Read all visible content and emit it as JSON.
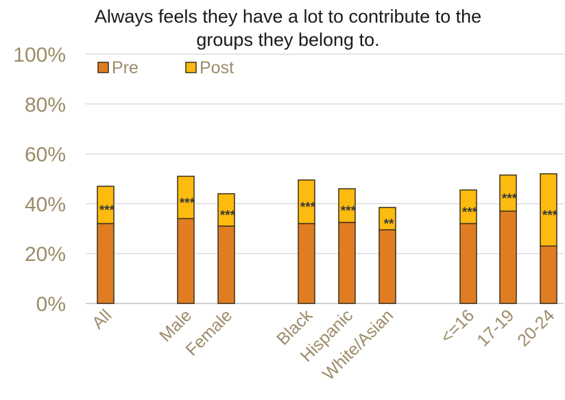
{
  "chart_data": {
    "type": "bar",
    "stacked": true,
    "title": "Always feels they have a lot to contribute to the groups they belong to.",
    "title_lines": [
      "Always feels they have a lot to contribute to the",
      "groups they belong to."
    ],
    "categories": [
      "All",
      "Male",
      "Female",
      "Black",
      "Hispanic",
      "White/Asian",
      "<=16",
      "17-19",
      "20-24"
    ],
    "groups": [
      [
        "All"
      ],
      [
        "Male",
        "Female"
      ],
      [
        "Black",
        "Hispanic",
        "White/Asian"
      ],
      [
        "<=16",
        "17-19",
        "20-24"
      ]
    ],
    "series": [
      {
        "name": "Pre",
        "color": "#e07d22",
        "values": [
          32,
          34,
          31,
          32,
          32.5,
          29.5,
          32,
          37,
          23
        ]
      },
      {
        "name": "Post",
        "color": "#fdbb10",
        "values": [
          47,
          51,
          44,
          49.5,
          46,
          38.5,
          45.5,
          51.5,
          52
        ]
      }
    ],
    "significance": [
      "***",
      "***",
      "***",
      "***",
      "***",
      "**",
      "***",
      "***",
      "***"
    ],
    "ylim": [
      0,
      100
    ],
    "yticks": [
      "0%",
      "20%",
      "40%",
      "60%",
      "80%",
      "100%"
    ],
    "ytick_values": [
      0,
      20,
      40,
      60,
      80,
      100
    ],
    "xlabel": "",
    "ylabel": "",
    "grid": true,
    "legend_position": "top-left"
  }
}
